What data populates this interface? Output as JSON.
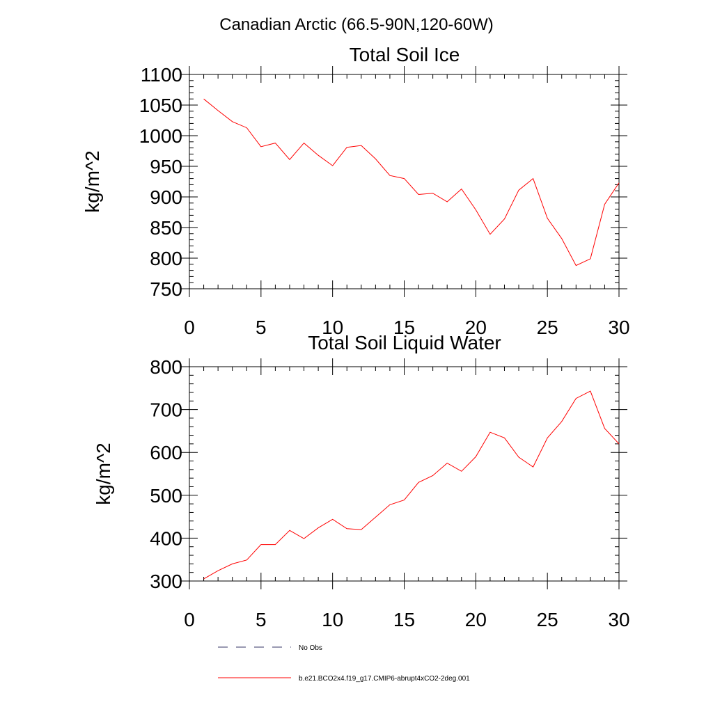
{
  "figure": {
    "title": "Canadian Arctic (66.5-90N,120-60W)"
  },
  "chart_data": [
    {
      "type": "line",
      "title": "Total Soil Ice",
      "xlabel": "",
      "ylabel": "kg/m^2",
      "xlim": [
        0,
        30
      ],
      "ylim": [
        750,
        1100
      ],
      "xticks": [
        0,
        5,
        10,
        15,
        20,
        25,
        30
      ],
      "yticks": [
        750,
        800,
        850,
        900,
        950,
        1000,
        1050,
        1100
      ],
      "x_minor_step": 1,
      "y_minor_step": 10,
      "grid": false,
      "series": [
        {
          "name": "b.e21.BCO2x4.f19_g17.CMIP6-abrupt4xCO2-2deg.001",
          "color": "#ff0000",
          "x": [
            1,
            2,
            3,
            4,
            5,
            6,
            7,
            8,
            9,
            10,
            11,
            12,
            13,
            14,
            15,
            16,
            17,
            18,
            19,
            20,
            21,
            22,
            23,
            24,
            25,
            26,
            27,
            28,
            29,
            30
          ],
          "values": [
            1060,
            1041,
            1023,
            1013,
            982,
            988,
            961,
            988,
            968,
            951,
            981,
            984,
            962,
            935,
            930,
            904,
            906,
            892,
            913,
            879,
            839,
            864,
            911,
            930,
            865,
            832,
            788,
            799,
            888,
            923
          ]
        }
      ]
    },
    {
      "type": "line",
      "title": "Total Soil Liquid Water",
      "xlabel": "",
      "ylabel": "kg/m^2",
      "xlim": [
        0,
        30
      ],
      "ylim": [
        300,
        800
      ],
      "xticks": [
        0,
        5,
        10,
        15,
        20,
        25,
        30
      ],
      "yticks": [
        300,
        400,
        500,
        600,
        700,
        800
      ],
      "x_minor_step": 1,
      "y_minor_step": 20,
      "grid": false,
      "series": [
        {
          "name": "b.e21.BCO2x4.f19_g17.CMIP6-abrupt4xCO2-2deg.001",
          "color": "#ff0000",
          "x": [
            1,
            2,
            3,
            4,
            5,
            6,
            7,
            8,
            9,
            10,
            11,
            12,
            13,
            14,
            15,
            16,
            17,
            18,
            19,
            20,
            21,
            22,
            23,
            24,
            25,
            26,
            27,
            28,
            29,
            30
          ],
          "values": [
            305,
            324,
            340,
            349,
            385,
            385,
            418,
            399,
            424,
            444,
            422,
            420,
            449,
            478,
            489,
            530,
            546,
            575,
            556,
            590,
            647,
            634,
            589,
            566,
            634,
            672,
            726,
            743,
            656,
            620
          ]
        }
      ]
    }
  ],
  "legend": {
    "placement": "bottom-left",
    "items": [
      {
        "label": "No Obs",
        "style": "dashed",
        "color": "#333366"
      },
      {
        "label": "b.e21.BCO2x4.f19_g17.CMIP6-abrupt4xCO2-2deg.001",
        "style": "solid",
        "color": "#ff0000"
      }
    ]
  }
}
